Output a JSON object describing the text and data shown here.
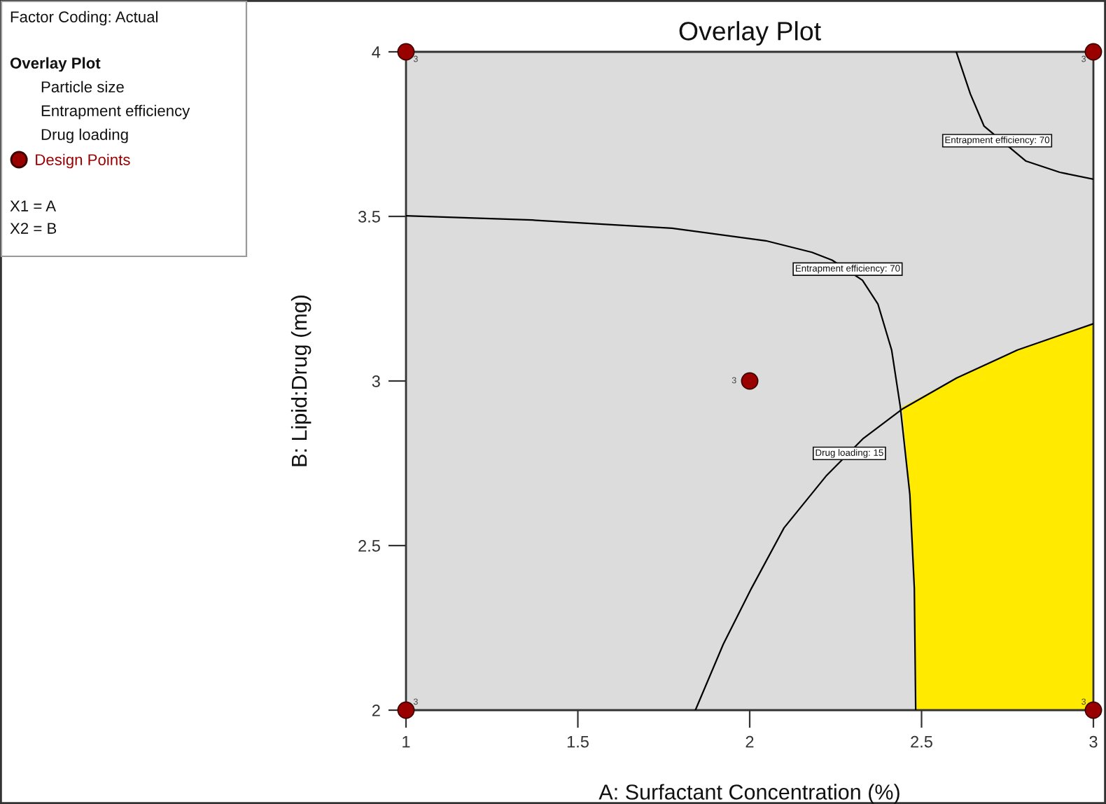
{
  "chart_data": {
    "type": "line",
    "title": "Overlay Plot",
    "xlabel": "A: Surfactant Concentration (%)",
    "ylabel": "B: Lipid:Drug (mg)",
    "xlim": [
      1,
      3
    ],
    "ylim": [
      2,
      4
    ],
    "xticks": [
      1,
      1.5,
      2,
      2.5,
      3
    ],
    "yticks": [
      2,
      2.5,
      3,
      3.5,
      4
    ],
    "grid": false,
    "legend": "top left",
    "series": [
      {
        "type": "area",
        "color": "#ffea00",
        "x": [
          2.483,
          2.479,
          2.466,
          2.443,
          2.602,
          2.779,
          3.0,
          3.0
        ],
        "values": [
          2.0,
          2.37,
          2.655,
          2.92,
          3.009,
          3.094,
          3.174,
          2.0
        ]
      },
      {
        "color": "#000000",
        "x": [
          2.601,
          2.642,
          2.682,
          2.804,
          2.902,
          3.0
        ],
        "values": [
          4.0,
          3.872,
          3.774,
          3.668,
          3.634,
          3.613
        ]
      },
      {
        "color": "#000000",
        "x": [
          1.0,
          1.367,
          1.774,
          2.047,
          2.181,
          2.24,
          2.328,
          2.373,
          2.413,
          2.438,
          2.466,
          2.479,
          2.483
        ],
        "values": [
          3.502,
          3.489,
          3.464,
          3.426,
          3.391,
          3.367,
          3.306,
          3.234,
          3.094,
          2.923,
          2.655,
          2.37,
          2.0
        ]
      },
      {
        "color": "#000000",
        "x": [
          1.842,
          1.923,
          2.005,
          2.1,
          2.222,
          2.331,
          2.446,
          2.602,
          2.779,
          3.0
        ],
        "values": [
          2.0,
          2.2,
          2.37,
          2.554,
          2.711,
          2.826,
          2.916,
          3.009,
          3.094,
          3.174
        ]
      },
      {
        "type": "scatter",
        "name": "Design Points",
        "color": "#990000",
        "marker": "circle",
        "x": [
          1,
          3,
          2,
          1,
          3
        ],
        "values": [
          4,
          4,
          3,
          2,
          2
        ]
      }
    ],
    "annotations": [
      "Factor Coding: Actual",
      "Overlay Plot",
      "Particle size",
      "Entrapment efficiency",
      "Drug loading",
      "X1 = A",
      "X2 = B",
      {
        "text": "Entrapment efficiency: 70",
        "x": 2.72,
        "y": 3.73
      },
      {
        "text": "Entrapment efficiency: 70",
        "x": 2.285,
        "y": 3.34
      },
      {
        "text": "Drug loading: 15",
        "x": 2.29,
        "y": 2.78
      },
      {
        "text": "3",
        "x": 1,
        "y": 4
      },
      {
        "text": "3",
        "x": 3,
        "y": 4
      },
      {
        "text": "3",
        "x": 2,
        "y": 3
      },
      {
        "text": "3",
        "x": 1,
        "y": 2
      },
      {
        "text": "3",
        "x": 3,
        "y": 2
      }
    ]
  }
}
